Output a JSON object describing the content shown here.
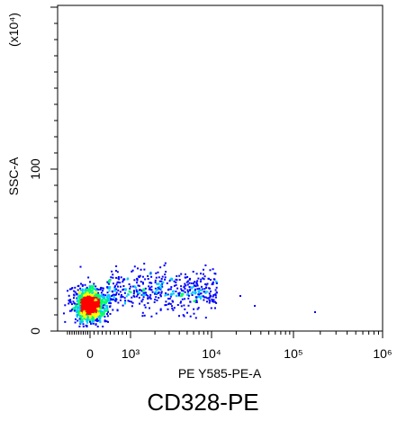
{
  "chart_data": {
    "type": "scatter",
    "style": "flow-cytometry-density",
    "title": "CD328-PE",
    "xlabel": "PE Y585-PE-A",
    "ylabel": "SSC-A",
    "y_multiplier": "(x10⁴)",
    "x_scale": "biexponential",
    "x_ticks": [
      {
        "value": 0,
        "label": "0"
      },
      {
        "value": 1000,
        "label": "10³"
      },
      {
        "value": 10000,
        "label": "10⁴"
      },
      {
        "value": 100000,
        "label": "10⁵"
      },
      {
        "value": 1000000,
        "label": "10⁶"
      }
    ],
    "y_ticks": [
      {
        "value": 0,
        "label": "0"
      },
      {
        "value": 100,
        "label": "100"
      }
    ],
    "ylim": [
      0,
      200
    ],
    "grid": false,
    "legend": "none",
    "populations": [
      {
        "name": "main cluster",
        "x_center": 0,
        "y_center": 14,
        "density": "high"
      },
      {
        "name": "positive tail",
        "x_range": [
          1000,
          10000
        ],
        "y_range": [
          5,
          40
        ],
        "density": "low"
      }
    ],
    "colors": {
      "low": "#0000ff",
      "medium": "#00c8ff",
      "high": "#00ff66",
      "higher": "#ffff00",
      "peak": "#ff0000"
    }
  }
}
